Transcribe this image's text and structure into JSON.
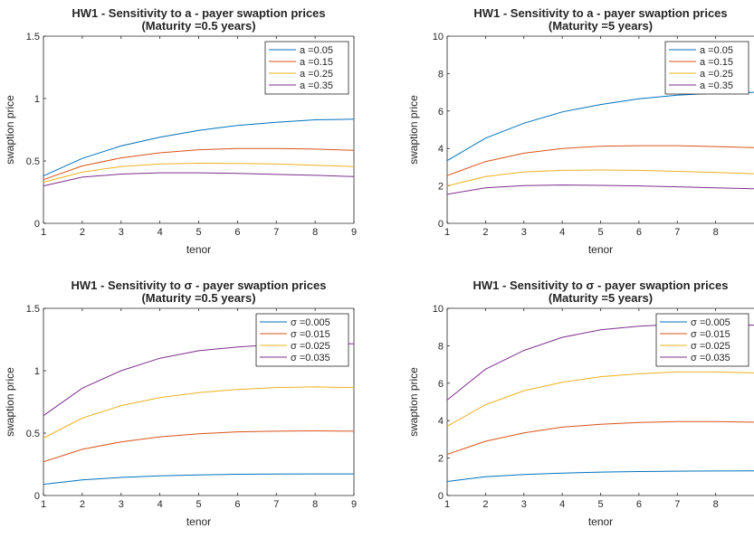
{
  "colors": {
    "series": [
      "#0072bd",
      "#d95319",
      "#edb120",
      "#7e2f8e"
    ],
    "axis": "#262626",
    "background": "#ffffff"
  },
  "chart_data": [
    {
      "type": "line",
      "title": "HW1 - Sensitivity to a - payer swaption prices",
      "subtitle": "(Maturity =0.5 years)",
      "xlabel": "tenor",
      "ylabel": "swaption price",
      "xlim": [
        1,
        9
      ],
      "ylim": [
        0,
        1.5
      ],
      "xticks": [
        "1",
        "2",
        "3",
        "4",
        "5",
        "6",
        "7",
        "8",
        "9"
      ],
      "yticks": [
        "0",
        "0.5",
        "1",
        "1.5"
      ],
      "grid": false,
      "legend": "top-right",
      "x": [
        1,
        2,
        3,
        4,
        5,
        6,
        7,
        8,
        9
      ],
      "series": [
        {
          "name": "a =0.05",
          "values": [
            0.38,
            0.52,
            0.62,
            0.69,
            0.745,
            0.785,
            0.81,
            0.83,
            0.835
          ]
        },
        {
          "name": "a =0.15",
          "values": [
            0.35,
            0.46,
            0.525,
            0.565,
            0.59,
            0.6,
            0.6,
            0.595,
            0.585
          ]
        },
        {
          "name": "a =0.25",
          "values": [
            0.33,
            0.41,
            0.455,
            0.475,
            0.482,
            0.48,
            0.475,
            0.465,
            0.455
          ]
        },
        {
          "name": "a =0.35",
          "values": [
            0.3,
            0.37,
            0.395,
            0.405,
            0.405,
            0.4,
            0.392,
            0.385,
            0.375
          ]
        }
      ]
    },
    {
      "type": "line",
      "title": "HW1 - Sensitivity to a - payer swaption prices",
      "subtitle": "(Maturity =5 years)",
      "xlabel": "tenor",
      "ylabel": "swaption price",
      "xlim": [
        1,
        9
      ],
      "ylim": [
        0,
        10
      ],
      "xticks": [
        "1",
        "2",
        "3",
        "4",
        "5",
        "6",
        "7",
        "8"
      ],
      "yticks": [
        "0",
        "2",
        "4",
        "6",
        "8",
        "10"
      ],
      "grid": false,
      "legend": "top-right",
      "x": [
        1,
        2,
        3,
        4,
        5,
        6,
        7,
        8,
        9
      ],
      "series": [
        {
          "name": "a =0.05",
          "values": [
            3.35,
            4.55,
            5.35,
            5.95,
            6.35,
            6.65,
            6.85,
            6.95,
            7.0
          ]
        },
        {
          "name": "a =0.15",
          "values": [
            2.55,
            3.3,
            3.75,
            4.0,
            4.12,
            4.15,
            4.15,
            4.1,
            4.05
          ]
        },
        {
          "name": "a =0.25",
          "values": [
            2.0,
            2.5,
            2.75,
            2.83,
            2.85,
            2.83,
            2.78,
            2.72,
            2.65
          ]
        },
        {
          "name": "a =0.35",
          "values": [
            1.55,
            1.9,
            2.02,
            2.05,
            2.03,
            2.0,
            1.95,
            1.9,
            1.85
          ]
        }
      ]
    },
    {
      "type": "line",
      "title": "HW1 - Sensitivity to σ - payer swaption prices",
      "subtitle": "(Maturity =0.5 years)",
      "xlabel": "tenor",
      "ylabel": "swaption price",
      "xlim": [
        1,
        9
      ],
      "ylim": [
        0,
        1.5
      ],
      "xticks": [
        "1",
        "2",
        "3",
        "4",
        "5",
        "6",
        "7",
        "8",
        "9"
      ],
      "yticks": [
        "0",
        "0.5",
        "1",
        "1.5"
      ],
      "grid": false,
      "legend": "top-right",
      "x": [
        1,
        2,
        3,
        4,
        5,
        6,
        7,
        8,
        9
      ],
      "series": [
        {
          "name": "σ =0.005",
          "values": [
            0.09,
            0.125,
            0.145,
            0.158,
            0.165,
            0.17,
            0.172,
            0.173,
            0.173
          ]
        },
        {
          "name": "σ =0.015",
          "values": [
            0.27,
            0.37,
            0.43,
            0.47,
            0.495,
            0.51,
            0.515,
            0.518,
            0.515
          ]
        },
        {
          "name": "σ =0.025",
          "values": [
            0.46,
            0.62,
            0.72,
            0.785,
            0.825,
            0.85,
            0.865,
            0.87,
            0.865
          ]
        },
        {
          "name": "σ =0.035",
          "values": [
            0.64,
            0.86,
            1.0,
            1.1,
            1.16,
            1.19,
            1.21,
            1.22,
            1.215
          ]
        }
      ]
    },
    {
      "type": "line",
      "title": "HW1 - Sensitivity to σ - payer swaption prices",
      "subtitle": "(Maturity =5 years)",
      "xlabel": "tenor",
      "ylabel": "swaption price",
      "xlim": [
        1,
        9
      ],
      "ylim": [
        0,
        10
      ],
      "xticks": [
        "1",
        "2",
        "3",
        "4",
        "5",
        "6",
        "7",
        "8"
      ],
      "yticks": [
        "0",
        "2",
        "4",
        "6",
        "8",
        "10"
      ],
      "grid": false,
      "legend": "top-right",
      "x": [
        1,
        2,
        3,
        4,
        5,
        6,
        7,
        8,
        9
      ],
      "series": [
        {
          "name": "σ =0.005",
          "values": [
            0.75,
            1.0,
            1.12,
            1.2,
            1.25,
            1.28,
            1.3,
            1.31,
            1.32
          ]
        },
        {
          "name": "σ =0.015",
          "values": [
            2.2,
            2.9,
            3.35,
            3.65,
            3.8,
            3.9,
            3.95,
            3.95,
            3.92
          ]
        },
        {
          "name": "σ =0.025",
          "values": [
            3.7,
            4.85,
            5.6,
            6.05,
            6.35,
            6.5,
            6.6,
            6.6,
            6.55
          ]
        },
        {
          "name": "σ =0.035",
          "values": [
            5.1,
            6.75,
            7.75,
            8.45,
            8.85,
            9.05,
            9.15,
            9.15,
            9.1
          ]
        }
      ]
    }
  ]
}
